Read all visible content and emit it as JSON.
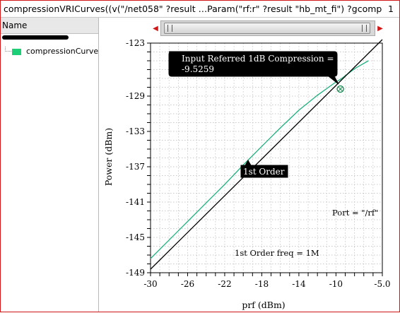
{
  "window": {
    "title": "compressionVRICurves((v(\"/net058\" ?result …Param(\"rf:r\" ?result \"hb_mt_fi\") ?gcomp",
    "page": "1"
  },
  "sidebar": {
    "header": "Name",
    "items": [
      {
        "label": "compressionCurve",
        "color": "#1fcf77"
      }
    ]
  },
  "annotations": {
    "compression_box_line1": "Input Referred 1dB Compression =",
    "compression_box_line2": "-9.5259",
    "first_order_label": "1st Order",
    "port_label": "Port = \"/rf\"",
    "freq_label": "1st Order freq = 1M"
  },
  "chart_data": {
    "type": "line",
    "xlabel": "prf (dBm)",
    "ylabel": "Power (dBm)",
    "xlim": [
      -30,
      -5
    ],
    "ylim": [
      -149,
      -123
    ],
    "xticks": [
      "-30",
      "-26",
      "-22",
      "-18",
      "-14",
      "-10",
      "-5.0"
    ],
    "yticks": [
      "-123",
      "-129",
      "-133",
      "-137",
      "-141",
      "-145",
      "-149"
    ],
    "grid": true,
    "series": [
      {
        "name": "compressionCurve",
        "color": "#20b080",
        "x": [
          -30,
          -28,
          -26,
          -24,
          -22,
          -20,
          -18,
          -16,
          -14,
          -12,
          -10,
          -9.5,
          -8,
          -6.5
        ],
        "y": [
          -147.4,
          -145.3,
          -143.2,
          -141.1,
          -139.0,
          -136.8,
          -134.7,
          -132.6,
          -130.6,
          -128.9,
          -127.4,
          -127.1,
          -125.9,
          -125.0
        ]
      },
      {
        "name": "1st Order",
        "color": "#000000",
        "x": [
          -30,
          -5
        ],
        "y": [
          -148.6,
          -122.6
        ]
      }
    ],
    "marker": {
      "x": -9.5259,
      "y": -128.2
    }
  }
}
